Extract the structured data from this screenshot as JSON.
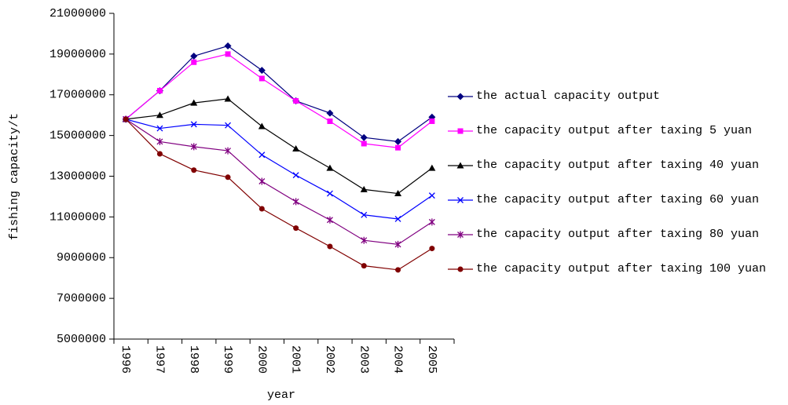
{
  "chart_data": {
    "type": "line",
    "x_label": "year",
    "y_label": "fishing capacity/t",
    "categories": [
      "1996",
      "1997",
      "1998",
      "1999",
      "2000",
      "2001",
      "2002",
      "2003",
      "2004",
      "2005"
    ],
    "series": [
      {
        "name": "the actual capacity output",
        "color": "#000080",
        "marker": "diamond",
        "values": [
          15800000,
          17200000,
          18900000,
          19400000,
          18200000,
          16700000,
          16100000,
          14900000,
          14700000,
          15900000
        ]
      },
      {
        "name": "the capacity output after taxing 5 yuan",
        "color": "#ff00ff",
        "marker": "square",
        "values": [
          15800000,
          17200000,
          18600000,
          19000000,
          17800000,
          16700000,
          15700000,
          14600000,
          14400000,
          15700000
        ]
      },
      {
        "name": "the capacity output after taxing 40 yuan",
        "color": "#000000",
        "marker": "triangle",
        "values": [
          15800000,
          16000000,
          16600000,
          16800000,
          15450000,
          14350000,
          13400000,
          12350000,
          12150000,
          13400000
        ]
      },
      {
        "name": "the capacity output after taxing 60 yuan",
        "color": "#0000ff",
        "marker": "x",
        "values": [
          15800000,
          15350000,
          15550000,
          15500000,
          14050000,
          13050000,
          12150000,
          11100000,
          10900000,
          12050000
        ]
      },
      {
        "name": "the capacity output after taxing 80 yuan",
        "color": "#800080",
        "marker": "star",
        "values": [
          15800000,
          14700000,
          14450000,
          14250000,
          12750000,
          11750000,
          10850000,
          9850000,
          9650000,
          10750000
        ]
      },
      {
        "name": "the capacity output after taxing 100 yuan",
        "color": "#800000",
        "marker": "circle",
        "values": [
          15800000,
          14100000,
          13300000,
          12950000,
          11400000,
          10450000,
          9550000,
          8600000,
          8400000,
          9450000
        ]
      }
    ],
    "ylim": [
      5000000,
      21000000
    ],
    "yticks": [
      5000000,
      7000000,
      9000000,
      11000000,
      13000000,
      15000000,
      17000000,
      19000000,
      21000000
    ],
    "legend": "right"
  }
}
